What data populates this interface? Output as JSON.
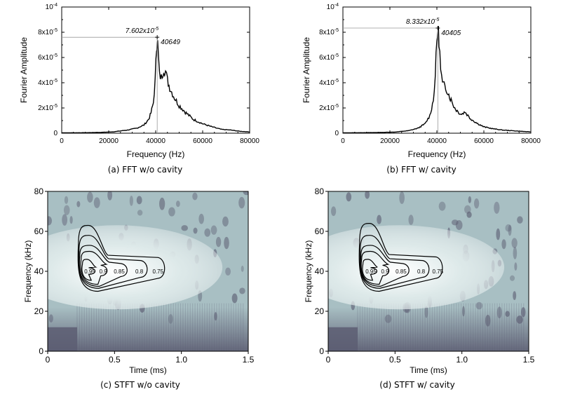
{
  "chart_data": [
    {
      "id": "a",
      "type": "line",
      "caption": "(a) FFT w/o cavity",
      "xlabel": "Frequency (Hz)",
      "ylabel": "Fourier Amplitude",
      "xlim": [
        0,
        80000
      ],
      "ylim": [
        0,
        0.0001
      ],
      "x_ticks": [
        "0",
        "20000",
        "40000",
        "60000",
        "80000"
      ],
      "y_ticks": [
        {
          "m": "0",
          "e": ""
        },
        {
          "m": "2x10",
          "e": "-5"
        },
        {
          "m": "4x10",
          "e": "-5"
        },
        {
          "m": "6x10",
          "e": "-5"
        },
        {
          "m": "8x10",
          "e": "-5"
        },
        {
          "m": "10",
          "e": "-4"
        }
      ],
      "peak": {
        "x": 40649,
        "y": 7.602e-05,
        "amp_mantissa": "7.602x10",
        "amp_exp": "-5",
        "freq_label": "40649"
      },
      "series": [
        {
          "x": [
            0,
            10000,
            16000,
            22000,
            28000,
            32000,
            35000,
            37000,
            38000,
            39000,
            39800,
            40400,
            40649,
            41000,
            41600,
            42400,
            43400,
            44200,
            45000,
            46000,
            48000,
            50000,
            53000,
            56000,
            60000,
            64000,
            68000,
            72000,
            76000,
            80000
          ],
          "y": [
            3e-07,
            4e-07,
            6e-07,
            1.1e-06,
            2.5e-06,
            4e-06,
            6.5e-06,
            1.1e-05,
            1.6e-05,
            2.4e-05,
            4.2e-05,
            6.8e-05,
            7.6e-05,
            6.6e-05,
            4.6e-05,
            4.4e-05,
            5.1e-05,
            4.9e-05,
            4.2e-05,
            3.6e-05,
            2.8e-05,
            2.2e-05,
            1.6e-05,
            1.1e-05,
            7.5e-06,
            5e-06,
            3e-06,
            2.5e-06,
            1.5e-06,
            1e-06
          ]
        }
      ]
    },
    {
      "id": "b",
      "type": "line",
      "caption": "(b) FFT w/ cavity",
      "xlabel": "Frequency (Hz)",
      "ylabel": "Fourier Amplitude",
      "xlim": [
        0,
        80000
      ],
      "ylim": [
        0,
        0.0001
      ],
      "x_ticks": [
        "0",
        "20000",
        "40000",
        "60000",
        "80000"
      ],
      "y_ticks": [
        {
          "m": "0",
          "e": ""
        },
        {
          "m": "2x10",
          "e": "-5"
        },
        {
          "m": "4x10",
          "e": "-5"
        },
        {
          "m": "6x10",
          "e": "-5"
        },
        {
          "m": "8x10",
          "e": "-5"
        },
        {
          "m": "10",
          "e": "-4"
        }
      ],
      "peak": {
        "x": 40405,
        "y": 8.332e-05,
        "amp_mantissa": "8.332x10",
        "amp_exp": "-5",
        "freq_label": "40405"
      },
      "series": [
        {
          "x": [
            0,
            14000,
            22000,
            28000,
            32000,
            35000,
            37000,
            38500,
            39300,
            40000,
            40405,
            40900,
            41600,
            42400,
            43400,
            44400,
            45400,
            46400,
            47600,
            49000,
            50500,
            52000,
            54000,
            57000,
            60000,
            64000,
            68000,
            72000,
            76000,
            80000
          ],
          "y": [
            3e-07,
            5e-07,
            9e-07,
            2e-06,
            4e-06,
            7.5e-06,
            1.4e-05,
            2.6e-05,
            4.6e-05,
            7.2e-05,
            8.3e-05,
            7.5e-05,
            5e-05,
            3.9e-05,
            3.7e-05,
            3.4e-05,
            2.9e-05,
            2.5e-05,
            2e-05,
            1.7e-05,
            1.5e-05,
            1.7e-05,
            1.2e-05,
            8e-06,
            5e-06,
            3.5e-06,
            2.5e-06,
            2e-06,
            1.5e-06,
            1e-06
          ]
        }
      ]
    },
    {
      "id": "c",
      "type": "heatmap",
      "caption": "(c) STFT w/o cavity",
      "xlabel": "Time (ms)",
      "ylabel": "Frequency (kHz)",
      "xlim": [
        0,
        1.5
      ],
      "ylim": [
        0,
        80
      ],
      "x_ticks": [
        "0",
        "0.5",
        "1.0",
        "1.5"
      ],
      "y_ticks": [
        "0",
        "20",
        "40",
        "60",
        "80"
      ],
      "colors": {
        "background": "#a8bfc3",
        "peak": "#ffffff",
        "dark": "#5c5d72"
      },
      "peak_center": {
        "t": 0.32,
        "f": 40
      },
      "contours": [
        {
          "label": "0.95",
          "t_min": 0.26,
          "t_max": 0.37,
          "f_min": 35.5,
          "f_max": 46
        },
        {
          "label": "0.9",
          "t_min": 0.25,
          "t_max": 0.46,
          "f_min": 33.5,
          "f_max": 50
        },
        {
          "label": "0.85",
          "t_min": 0.24,
          "t_max": 0.61,
          "f_min": 32.5,
          "f_max": 53
        },
        {
          "label": "0.8",
          "t_min": 0.235,
          "t_max": 0.76,
          "f_min": 31.5,
          "f_max": 58
        },
        {
          "label": "0.75",
          "t_min": 0.23,
          "t_max": 0.89,
          "f_min": 30,
          "f_max": 63
        }
      ]
    },
    {
      "id": "d",
      "type": "heatmap",
      "caption": "(d) STFT w/ cavity",
      "xlabel": "Time (ms)",
      "ylabel": "Frequency (kHz)",
      "xlim": [
        0,
        1.5
      ],
      "ylim": [
        0,
        80
      ],
      "x_ticks": [
        "0",
        "0.5",
        "1.0",
        "1.5"
      ],
      "y_ticks": [
        "0",
        "20",
        "40",
        "60",
        "80"
      ],
      "colors": {
        "background": "#a8bfc3",
        "peak": "#ffffff",
        "dark": "#5c5d72"
      },
      "peak_center": {
        "t": 0.33,
        "f": 40
      },
      "contours": [
        {
          "label": "0.95",
          "t_min": 0.26,
          "t_max": 0.38,
          "f_min": 35.5,
          "f_max": 46
        },
        {
          "label": "0.9",
          "t_min": 0.25,
          "t_max": 0.47,
          "f_min": 33.5,
          "f_max": 50
        },
        {
          "label": "0.85",
          "t_min": 0.245,
          "t_max": 0.62,
          "f_min": 32.5,
          "f_max": 53
        },
        {
          "label": "0.8",
          "t_min": 0.24,
          "t_max": 0.77,
          "f_min": 31.5,
          "f_max": 58
        },
        {
          "label": "0.75",
          "t_min": 0.235,
          "t_max": 0.87,
          "f_min": 30,
          "f_max": 64
        }
      ]
    }
  ]
}
